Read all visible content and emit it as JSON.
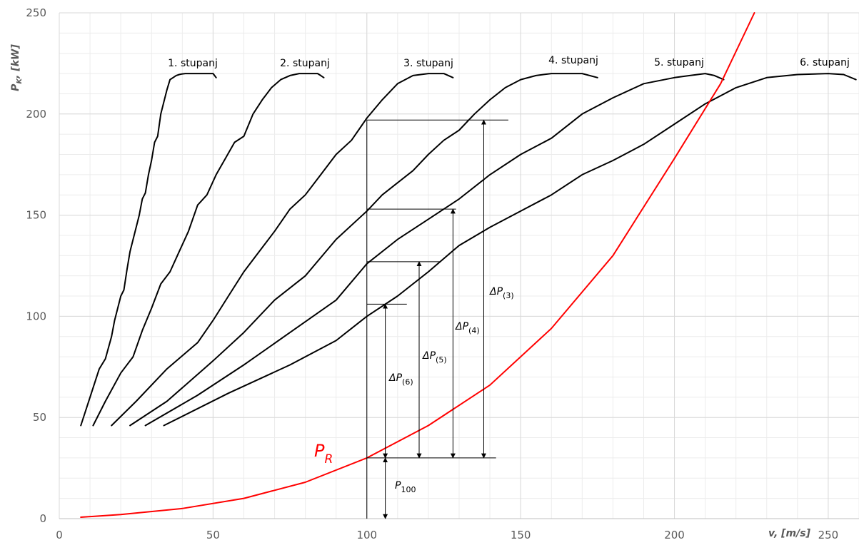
{
  "chart_data": {
    "type": "line",
    "xlabel": "v, [m/s]",
    "ylabel": "P_K, [kW]",
    "xlim": [
      0,
      260
    ],
    "ylim": [
      0,
      250
    ],
    "x_ticks": [
      0,
      50,
      100,
      150,
      200,
      250
    ],
    "y_ticks": [
      0,
      50,
      100,
      150,
      200,
      250
    ],
    "grid": true,
    "minor_grid": true,
    "colors": {
      "gear_curves": "#000000",
      "resistance_curve": "#ff0000",
      "grid": "#d9d9d9"
    },
    "series": [
      {
        "name": "1. stupanj",
        "x": [
          7,
          10,
          13,
          15,
          17,
          18,
          20,
          21,
          22,
          23,
          24,
          25,
          26,
          27,
          28,
          29,
          30,
          31,
          32,
          33,
          34,
          35,
          36,
          37,
          38,
          39,
          40,
          41,
          42,
          43,
          44,
          45,
          46,
          47,
          48,
          49,
          50,
          50.5,
          51
        ],
        "y": [
          46,
          60,
          74,
          79,
          90,
          98,
          110,
          113,
          123,
          132,
          138,
          144,
          150,
          158,
          161,
          170,
          177,
          186,
          189,
          200,
          206,
          212,
          217,
          218,
          219,
          219.5,
          219.8,
          220,
          220,
          220,
          220,
          220,
          220,
          220,
          220,
          220,
          220,
          219,
          218
        ]
      },
      {
        "name": "2. stupanj",
        "x": [
          11,
          15,
          20,
          24,
          27,
          30,
          33,
          36,
          39,
          42,
          45,
          48,
          51,
          54,
          57,
          60,
          63,
          66,
          69,
          72,
          75,
          78,
          80,
          82,
          84,
          85,
          86
        ],
        "y": [
          46,
          58,
          72,
          80,
          93,
          104,
          116,
          122,
          132,
          142,
          155,
          160,
          170,
          178,
          186,
          189,
          200,
          207,
          213,
          217,
          219,
          220,
          220,
          220,
          220,
          219,
          218
        ]
      },
      {
        "name": "3. stupanj",
        "x": [
          17,
          25,
          35,
          45,
          50,
          55,
          60,
          65,
          70,
          75,
          80,
          85,
          90,
          95,
          100,
          105,
          110,
          115,
          120,
          125,
          128
        ],
        "y": [
          46,
          58,
          74,
          87,
          98,
          110,
          122,
          132,
          142,
          153,
          160,
          170,
          180,
          187,
          198,
          207,
          215,
          219,
          220,
          220,
          218
        ]
      },
      {
        "name": "4. stupanj",
        "x": [
          23,
          35,
          50,
          60,
          70,
          80,
          90,
          100,
          105,
          110,
          115,
          120,
          125,
          130,
          135,
          140,
          145,
          150,
          155,
          160,
          165,
          170,
          175
        ],
        "y": [
          46,
          58,
          78,
          92,
          108,
          120,
          138,
          152,
          160,
          166,
          172,
          180,
          187,
          192,
          200,
          207,
          213,
          217,
          219,
          220,
          220,
          220,
          218
        ]
      },
      {
        "name": "5. stupanj",
        "x": [
          28,
          45,
          60,
          75,
          90,
          100,
          110,
          120,
          130,
          140,
          150,
          160,
          170,
          180,
          190,
          200,
          205,
          210,
          213,
          216
        ],
        "y": [
          46,
          61,
          76,
          92,
          108,
          126,
          138,
          148,
          158,
          170,
          180,
          188,
          200,
          208,
          215,
          218,
          219,
          220,
          219,
          217
        ]
      },
      {
        "name": "6. stupanj",
        "x": [
          34,
          55,
          75,
          90,
          100,
          110,
          120,
          130,
          140,
          150,
          160,
          170,
          180,
          190,
          200,
          210,
          220,
          230,
          240,
          250,
          255,
          259
        ],
        "y": [
          46,
          62,
          76,
          88,
          100,
          110,
          122,
          135,
          144,
          152,
          160,
          170,
          177,
          185,
          195,
          205,
          213,
          218,
          219.5,
          220,
          219.5,
          217
        ]
      },
      {
        "name": "P_R",
        "x": [
          7,
          20,
          40,
          60,
          80,
          100,
          120,
          140,
          160,
          180,
          200,
          215,
          226
        ],
        "y": [
          0.7,
          2,
          5,
          10,
          18,
          30,
          46,
          66,
          94,
          130,
          178,
          215,
          250
        ]
      }
    ],
    "annotations": {
      "gear_labels": [
        "1. stupanj",
        "2. stupanj",
        "3. stupanj",
        "4. stupanj",
        "5. stupanj",
        "6. stupanj"
      ],
      "pr_label": "P",
      "pr_subscript": "R",
      "p100_label": "P",
      "p100_subscript": "100",
      "delta_labels": [
        {
          "prefix": "ΔP",
          "sub": "(3)",
          "x": 138,
          "y_top": 197
        },
        {
          "prefix": "ΔP",
          "sub": "(4)",
          "x": 128,
          "y_top": 153
        },
        {
          "prefix": "ΔP",
          "sub": "(5)",
          "x": 117,
          "y_top": 127
        },
        {
          "prefix": "ΔP",
          "sub": "(6)",
          "x": 106,
          "y_top": 106
        }
      ],
      "reference_speed": 100,
      "reference_power": 30
    }
  }
}
